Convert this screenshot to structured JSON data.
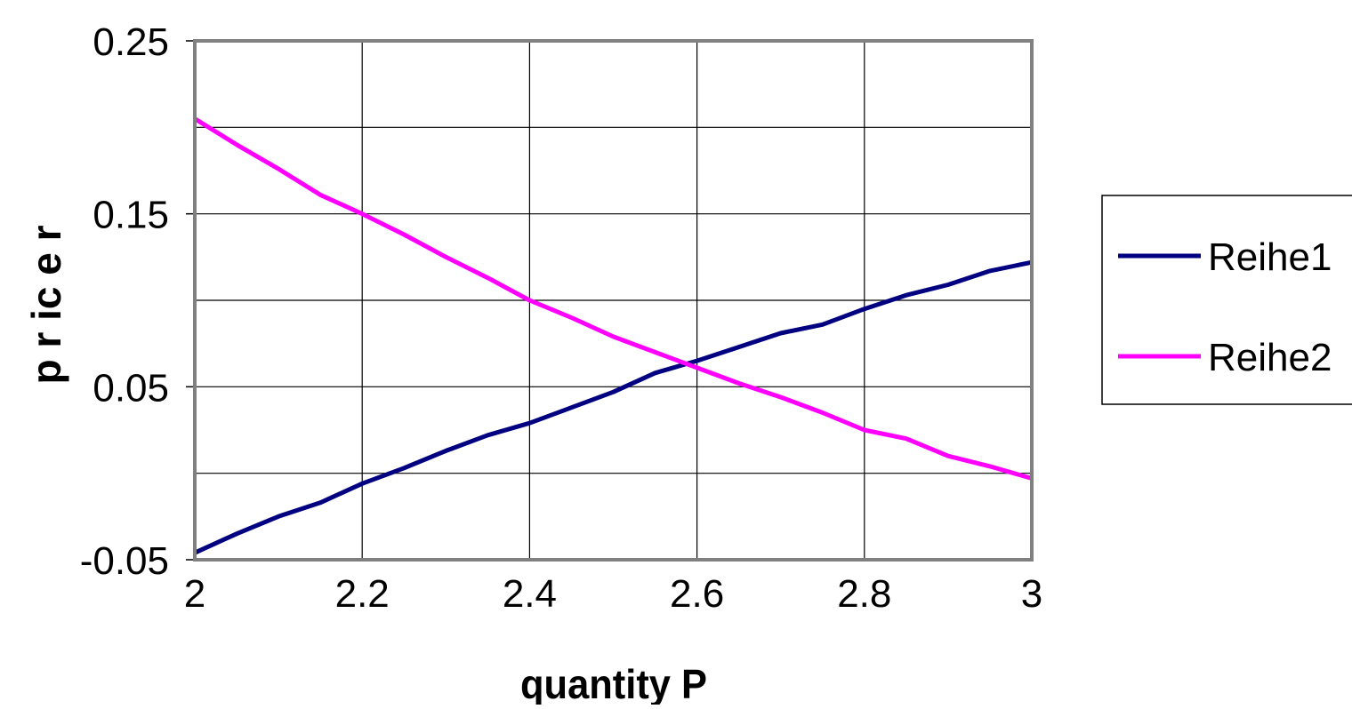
{
  "chart_data": {
    "type": "line",
    "title": "",
    "xlabel": "quantity P",
    "ylabel": "p r ic e  r",
    "xlim": [
      2,
      3
    ],
    "ylim": [
      -0.05,
      0.25
    ],
    "x_ticks": [
      "2",
      "2.2",
      "2.4",
      "2.6",
      "2.8",
      "3"
    ],
    "y_ticks": [
      "-0.05",
      "0.05",
      "0.15",
      "0.25"
    ],
    "y_gridlines": [
      -0.05,
      0.0,
      0.05,
      0.1,
      0.15,
      0.2,
      0.25
    ],
    "x_gridlines": [
      2.0,
      2.2,
      2.4,
      2.6,
      2.8,
      3.0
    ],
    "grid": true,
    "legend": "right",
    "x": [
      2.0,
      2.05,
      2.1,
      2.15,
      2.2,
      2.25,
      2.3,
      2.35,
      2.4,
      2.45,
      2.5,
      2.55,
      2.6,
      2.65,
      2.7,
      2.75,
      2.8,
      2.85,
      2.9,
      2.95,
      3.0
    ],
    "series": [
      {
        "name": "Reihe1",
        "color": "#000080",
        "values": [
          -0.046,
          -0.035,
          -0.025,
          -0.017,
          -0.006,
          0.003,
          0.013,
          0.022,
          0.029,
          0.038,
          0.047,
          0.058,
          0.065,
          0.073,
          0.081,
          0.086,
          0.095,
          0.103,
          0.109,
          0.117,
          0.122
        ]
      },
      {
        "name": "Reihe2",
        "color": "#FF00FF",
        "values": [
          0.205,
          0.19,
          0.176,
          0.161,
          0.15,
          0.138,
          0.125,
          0.113,
          0.1,
          0.09,
          0.079,
          0.07,
          0.061,
          0.052,
          0.044,
          0.035,
          0.025,
          0.02,
          0.01,
          0.004,
          -0.003
        ]
      }
    ]
  }
}
